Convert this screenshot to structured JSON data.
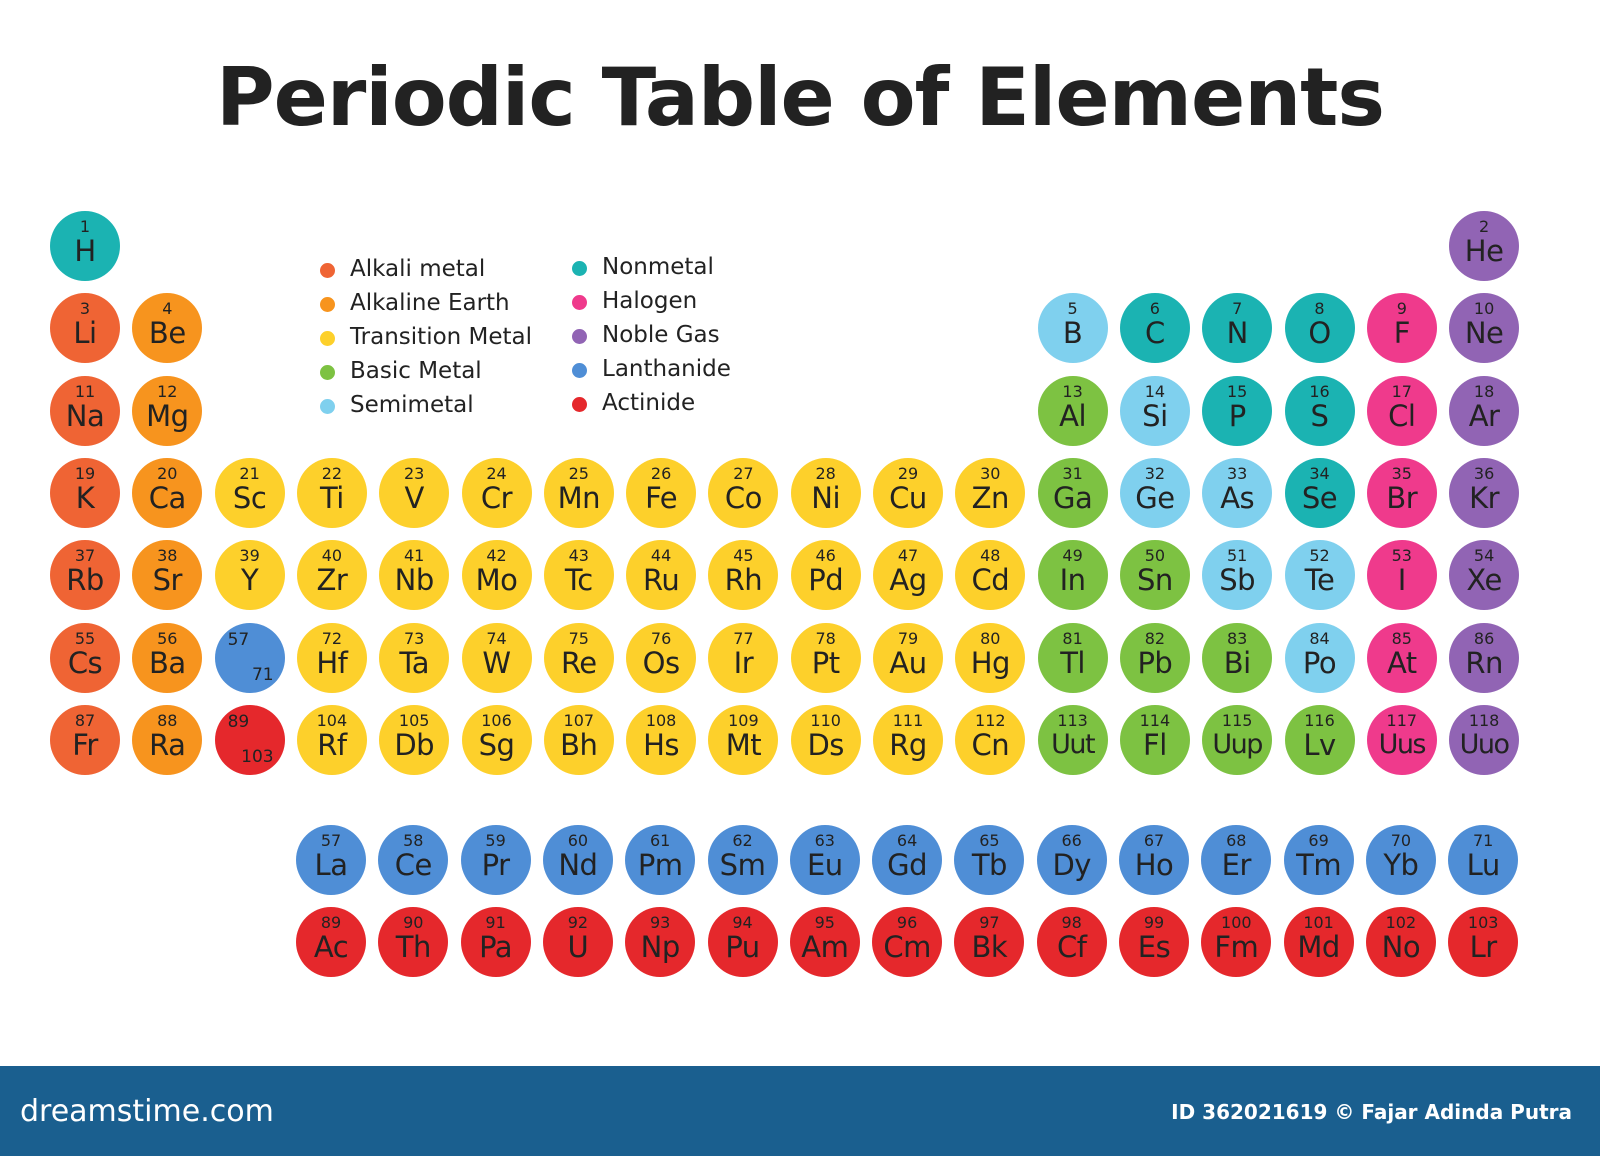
{
  "title": "Periodic Table of Elements",
  "colors": {
    "alkali": "#ef6434",
    "alkaline": "#f7941e",
    "transition": "#fdd02b",
    "basic": "#7dc242",
    "semimetal": "#7fd0ee",
    "nonmetal": "#1bb3b2",
    "halogen": "#ef3a8c",
    "noble": "#9164b4",
    "lanthanide": "#4f8ed6",
    "actinide": "#e5282c"
  },
  "legend": [
    {
      "label": "Alkali metal",
      "cat": "alkali"
    },
    {
      "label": "Alkaline Earth",
      "cat": "alkaline"
    },
    {
      "label": "Transition Metal",
      "cat": "transition"
    },
    {
      "label": "Basic Metal",
      "cat": "basic"
    },
    {
      "label": "Semimetal",
      "cat": "semimetal"
    },
    {
      "label": "Nonmetal",
      "cat": "nonmetal"
    },
    {
      "label": "Halogen",
      "cat": "halogen"
    },
    {
      "label": "Noble Gas",
      "cat": "noble"
    },
    {
      "label": "Lanthanide",
      "cat": "lanthanide"
    },
    {
      "label": "Actinide",
      "cat": "actinide"
    }
  ],
  "elements": [
    {
      "n": "1",
      "s": "H",
      "cat": "nonmetal",
      "period": 1,
      "group": 1
    },
    {
      "n": "2",
      "s": "He",
      "cat": "noble",
      "period": 1,
      "group": 18
    },
    {
      "n": "3",
      "s": "Li",
      "cat": "alkali",
      "period": 2,
      "group": 1
    },
    {
      "n": "4",
      "s": "Be",
      "cat": "alkaline",
      "period": 2,
      "group": 2
    },
    {
      "n": "5",
      "s": "B",
      "cat": "semimetal",
      "period": 2,
      "group": 13
    },
    {
      "n": "6",
      "s": "C",
      "cat": "nonmetal",
      "period": 2,
      "group": 14
    },
    {
      "n": "7",
      "s": "N",
      "cat": "nonmetal",
      "period": 2,
      "group": 15
    },
    {
      "n": "8",
      "s": "O",
      "cat": "nonmetal",
      "period": 2,
      "group": 16
    },
    {
      "n": "9",
      "s": "F",
      "cat": "halogen",
      "period": 2,
      "group": 17
    },
    {
      "n": "10",
      "s": "Ne",
      "cat": "noble",
      "period": 2,
      "group": 18
    },
    {
      "n": "11",
      "s": "Na",
      "cat": "alkali",
      "period": 3,
      "group": 1
    },
    {
      "n": "12",
      "s": "Mg",
      "cat": "alkaline",
      "period": 3,
      "group": 2
    },
    {
      "n": "13",
      "s": "Al",
      "cat": "basic",
      "period": 3,
      "group": 13
    },
    {
      "n": "14",
      "s": "Si",
      "cat": "semimetal",
      "period": 3,
      "group": 14
    },
    {
      "n": "15",
      "s": "P",
      "cat": "nonmetal",
      "period": 3,
      "group": 15
    },
    {
      "n": "16",
      "s": "S",
      "cat": "nonmetal",
      "period": 3,
      "group": 16
    },
    {
      "n": "17",
      "s": "Cl",
      "cat": "halogen",
      "period": 3,
      "group": 17
    },
    {
      "n": "18",
      "s": "Ar",
      "cat": "noble",
      "period": 3,
      "group": 18
    },
    {
      "n": "19",
      "s": "K",
      "cat": "alkali",
      "period": 4,
      "group": 1
    },
    {
      "n": "20",
      "s": "Ca",
      "cat": "alkaline",
      "period": 4,
      "group": 2
    },
    {
      "n": "21",
      "s": "Sc",
      "cat": "transition",
      "period": 4,
      "group": 3
    },
    {
      "n": "22",
      "s": "Ti",
      "cat": "transition",
      "period": 4,
      "group": 4
    },
    {
      "n": "23",
      "s": "V",
      "cat": "transition",
      "period": 4,
      "group": 5
    },
    {
      "n": "24",
      "s": "Cr",
      "cat": "transition",
      "period": 4,
      "group": 6
    },
    {
      "n": "25",
      "s": "Mn",
      "cat": "transition",
      "period": 4,
      "group": 7
    },
    {
      "n": "26",
      "s": "Fe",
      "cat": "transition",
      "period": 4,
      "group": 8
    },
    {
      "n": "27",
      "s": "Co",
      "cat": "transition",
      "period": 4,
      "group": 9
    },
    {
      "n": "28",
      "s": "Ni",
      "cat": "transition",
      "period": 4,
      "group": 10
    },
    {
      "n": "29",
      "s": "Cu",
      "cat": "transition",
      "period": 4,
      "group": 11
    },
    {
      "n": "30",
      "s": "Zn",
      "cat": "transition",
      "period": 4,
      "group": 12
    },
    {
      "n": "31",
      "s": "Ga",
      "cat": "basic",
      "period": 4,
      "group": 13
    },
    {
      "n": "32",
      "s": "Ge",
      "cat": "semimetal",
      "period": 4,
      "group": 14
    },
    {
      "n": "33",
      "s": "As",
      "cat": "semimetal",
      "period": 4,
      "group": 15
    },
    {
      "n": "34",
      "s": "Se",
      "cat": "nonmetal",
      "period": 4,
      "group": 16
    },
    {
      "n": "35",
      "s": "Br",
      "cat": "halogen",
      "period": 4,
      "group": 17
    },
    {
      "n": "36",
      "s": "Kr",
      "cat": "noble",
      "period": 4,
      "group": 18
    },
    {
      "n": "37",
      "s": "Rb",
      "cat": "alkali",
      "period": 5,
      "group": 1
    },
    {
      "n": "38",
      "s": "Sr",
      "cat": "alkaline",
      "period": 5,
      "group": 2
    },
    {
      "n": "39",
      "s": "Y",
      "cat": "transition",
      "period": 5,
      "group": 3
    },
    {
      "n": "40",
      "s": "Zr",
      "cat": "transition",
      "period": 5,
      "group": 4
    },
    {
      "n": "41",
      "s": "Nb",
      "cat": "transition",
      "period": 5,
      "group": 5
    },
    {
      "n": "42",
      "s": "Mo",
      "cat": "transition",
      "period": 5,
      "group": 6
    },
    {
      "n": "43",
      "s": "Tc",
      "cat": "transition",
      "period": 5,
      "group": 7
    },
    {
      "n": "44",
      "s": "Ru",
      "cat": "transition",
      "period": 5,
      "group": 8
    },
    {
      "n": "45",
      "s": "Rh",
      "cat": "transition",
      "period": 5,
      "group": 9
    },
    {
      "n": "46",
      "s": "Pd",
      "cat": "transition",
      "period": 5,
      "group": 10
    },
    {
      "n": "47",
      "s": "Ag",
      "cat": "transition",
      "period": 5,
      "group": 11
    },
    {
      "n": "48",
      "s": "Cd",
      "cat": "transition",
      "period": 5,
      "group": 12
    },
    {
      "n": "49",
      "s": "In",
      "cat": "basic",
      "period": 5,
      "group": 13
    },
    {
      "n": "50",
      "s": "Sn",
      "cat": "basic",
      "period": 5,
      "group": 14
    },
    {
      "n": "51",
      "s": "Sb",
      "cat": "semimetal",
      "period": 5,
      "group": 15
    },
    {
      "n": "52",
      "s": "Te",
      "cat": "semimetal",
      "period": 5,
      "group": 16
    },
    {
      "n": "53",
      "s": "I",
      "cat": "halogen",
      "period": 5,
      "group": 17
    },
    {
      "n": "54",
      "s": "Xe",
      "cat": "noble",
      "period": 5,
      "group": 18
    },
    {
      "n": "55",
      "s": "Cs",
      "cat": "alkali",
      "period": 6,
      "group": 1
    },
    {
      "n": "56",
      "s": "Ba",
      "cat": "alkaline",
      "period": 6,
      "group": 2
    },
    {
      "n": "72",
      "s": "Hf",
      "cat": "transition",
      "period": 6,
      "group": 4
    },
    {
      "n": "73",
      "s": "Ta",
      "cat": "transition",
      "period": 6,
      "group": 5
    },
    {
      "n": "74",
      "s": "W",
      "cat": "transition",
      "period": 6,
      "group": 6
    },
    {
      "n": "75",
      "s": "Re",
      "cat": "transition",
      "period": 6,
      "group": 7
    },
    {
      "n": "76",
      "s": "Os",
      "cat": "transition",
      "period": 6,
      "group": 8
    },
    {
      "n": "77",
      "s": "Ir",
      "cat": "transition",
      "period": 6,
      "group": 9
    },
    {
      "n": "78",
      "s": "Pt",
      "cat": "transition",
      "period": 6,
      "group": 10
    },
    {
      "n": "79",
      "s": "Au",
      "cat": "transition",
      "period": 6,
      "group": 11
    },
    {
      "n": "80",
      "s": "Hg",
      "cat": "transition",
      "period": 6,
      "group": 12
    },
    {
      "n": "81",
      "s": "Tl",
      "cat": "basic",
      "period": 6,
      "group": 13
    },
    {
      "n": "82",
      "s": "Pb",
      "cat": "basic",
      "period": 6,
      "group": 14
    },
    {
      "n": "83",
      "s": "Bi",
      "cat": "basic",
      "period": 6,
      "group": 15
    },
    {
      "n": "84",
      "s": "Po",
      "cat": "semimetal",
      "period": 6,
      "group": 16
    },
    {
      "n": "85",
      "s": "At",
      "cat": "halogen",
      "period": 6,
      "group": 17
    },
    {
      "n": "86",
      "s": "Rn",
      "cat": "noble",
      "period": 6,
      "group": 18
    },
    {
      "n": "87",
      "s": "Fr",
      "cat": "alkali",
      "period": 7,
      "group": 1
    },
    {
      "n": "88",
      "s": "Ra",
      "cat": "alkaline",
      "period": 7,
      "group": 2
    },
    {
      "n": "104",
      "s": "Rf",
      "cat": "transition",
      "period": 7,
      "group": 4
    },
    {
      "n": "105",
      "s": "Db",
      "cat": "transition",
      "period": 7,
      "group": 5
    },
    {
      "n": "106",
      "s": "Sg",
      "cat": "transition",
      "period": 7,
      "group": 6
    },
    {
      "n": "107",
      "s": "Bh",
      "cat": "transition",
      "period": 7,
      "group": 7
    },
    {
      "n": "108",
      "s": "Hs",
      "cat": "transition",
      "period": 7,
      "group": 8
    },
    {
      "n": "109",
      "s": "Mt",
      "cat": "transition",
      "period": 7,
      "group": 9
    },
    {
      "n": "110",
      "s": "Ds",
      "cat": "transition",
      "period": 7,
      "group": 10
    },
    {
      "n": "111",
      "s": "Rg",
      "cat": "transition",
      "period": 7,
      "group": 11
    },
    {
      "n": "112",
      "s": "Cn",
      "cat": "transition",
      "period": 7,
      "group": 12
    },
    {
      "n": "113",
      "s": "Uut",
      "cat": "basic",
      "period": 7,
      "group": 13
    },
    {
      "n": "114",
      "s": "Fl",
      "cat": "basic",
      "period": 7,
      "group": 14
    },
    {
      "n": "115",
      "s": "Uup",
      "cat": "basic",
      "period": 7,
      "group": 15
    },
    {
      "n": "116",
      "s": "Lv",
      "cat": "basic",
      "period": 7,
      "group": 16
    },
    {
      "n": "117",
      "s": "Uus",
      "cat": "halogen",
      "period": 7,
      "group": 17
    },
    {
      "n": "118",
      "s": "Uuo",
      "cat": "noble",
      "period": 7,
      "group": 18
    }
  ],
  "placeholders": [
    {
      "from": "57",
      "to": "71",
      "cat": "lanthanide",
      "period": 6,
      "group": 3
    },
    {
      "from": "89",
      "to": "103",
      "cat": "actinide",
      "period": 7,
      "group": 3
    }
  ],
  "lanthanides": [
    {
      "n": "57",
      "s": "La"
    },
    {
      "n": "58",
      "s": "Ce"
    },
    {
      "n": "59",
      "s": "Pr"
    },
    {
      "n": "60",
      "s": "Nd"
    },
    {
      "n": "61",
      "s": "Pm"
    },
    {
      "n": "62",
      "s": "Sm"
    },
    {
      "n": "63",
      "s": "Eu"
    },
    {
      "n": "64",
      "s": "Gd"
    },
    {
      "n": "65",
      "s": "Tb"
    },
    {
      "n": "66",
      "s": "Dy"
    },
    {
      "n": "67",
      "s": "Ho"
    },
    {
      "n": "68",
      "s": "Er"
    },
    {
      "n": "69",
      "s": "Tm"
    },
    {
      "n": "70",
      "s": "Yb"
    },
    {
      "n": "71",
      "s": "Lu"
    }
  ],
  "actinides": [
    {
      "n": "89",
      "s": "Ac"
    },
    {
      "n": "90",
      "s": "Th"
    },
    {
      "n": "91",
      "s": "Pa"
    },
    {
      "n": "92",
      "s": "U"
    },
    {
      "n": "93",
      "s": "Np"
    },
    {
      "n": "94",
      "s": "Pu"
    },
    {
      "n": "95",
      "s": "Am"
    },
    {
      "n": "96",
      "s": "Cm"
    },
    {
      "n": "97",
      "s": "Bk"
    },
    {
      "n": "98",
      "s": "Cf"
    },
    {
      "n": "99",
      "s": "Es"
    },
    {
      "n": "100",
      "s": "Fm"
    },
    {
      "n": "101",
      "s": "Md"
    },
    {
      "n": "102",
      "s": "No"
    },
    {
      "n": "103",
      "s": "Lr"
    }
  ],
  "footer": {
    "brand": "dreamstime.com",
    "credit": "ID 362021619 © Fajar Adinda Putra"
  }
}
